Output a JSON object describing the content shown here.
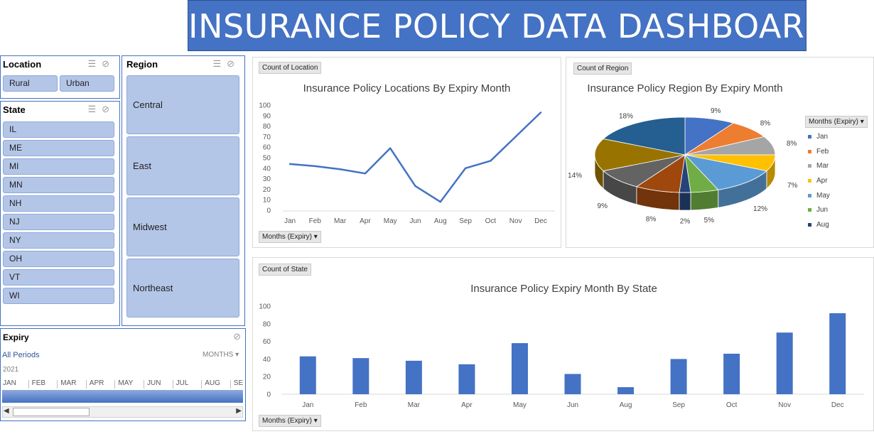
{
  "title": "INSURANCE POLICY DATA DASHBOARD",
  "slicers": {
    "location": {
      "title": "Location",
      "items": [
        "Rural",
        "Urban"
      ]
    },
    "state": {
      "title": "State",
      "items": [
        "IL",
        "ME",
        "MI",
        "MN",
        "NH",
        "NJ",
        "NY",
        "OH",
        "VT",
        "WI"
      ]
    },
    "region": {
      "title": "Region",
      "items": [
        "Central",
        "East",
        "Midwest",
        "Northeast"
      ]
    }
  },
  "timeline": {
    "title": "Expiry",
    "periods_label": "All Periods",
    "level_label": "MONTHS",
    "year": "2021",
    "months": [
      "JAN",
      "FEB",
      "MAR",
      "APR",
      "MAY",
      "JUN",
      "JUL",
      "AUG",
      "SE"
    ]
  },
  "line_panel": {
    "field_button": "Count of Location",
    "axis_field_button": "Months (Expiry)"
  },
  "pie_panel": {
    "field_button": "Count of Region",
    "legend_field_button": "Months (Expiry)"
  },
  "bar_panel": {
    "field_button": "Count of State",
    "axis_field_button": "Months (Expiry)"
  },
  "colors": {
    "accent": "#4472c4",
    "slicer_item": "#b4c6e7"
  },
  "chart_data": [
    {
      "type": "line",
      "title": "Insurance Policy Locations By Expiry Month",
      "categories": [
        "Jan",
        "Feb",
        "Mar",
        "Apr",
        "May",
        "Jun",
        "Aug",
        "Sep",
        "Oct",
        "Nov",
        "Dec"
      ],
      "values": [
        44,
        42,
        39,
        35,
        59,
        23,
        8,
        40,
        47,
        70,
        93
      ],
      "ylim": [
        0,
        100
      ],
      "yticks": [
        0,
        10,
        20,
        30,
        40,
        50,
        60,
        70,
        80,
        90,
        100
      ],
      "grid": false
    },
    {
      "type": "pie",
      "title": "Insurance Policy Region By Expiry Month",
      "legend": [
        "Jan",
        "Feb",
        "Mar",
        "Apr",
        "May",
        "Jun",
        "Aug"
      ],
      "slices": [
        {
          "label": "9%",
          "value": 9,
          "color": "#4472c4"
        },
        {
          "label": "8%",
          "value": 8,
          "color": "#ed7d31"
        },
        {
          "label": "8%",
          "value": 8,
          "color": "#a5a5a5"
        },
        {
          "label": "7%",
          "value": 7,
          "color": "#ffc000"
        },
        {
          "label": "12%",
          "value": 12,
          "color": "#5b9bd5"
        },
        {
          "label": "5%",
          "value": 5,
          "color": "#70ad47"
        },
        {
          "label": "2%",
          "value": 2,
          "color": "#264478"
        },
        {
          "label": "8%",
          "value": 8,
          "color": "#9e480e"
        },
        {
          "label": "9%",
          "value": 9,
          "color": "#636363"
        },
        {
          "label": "14%",
          "value": 14,
          "color": "#997300"
        },
        {
          "label": "18%",
          "value": 18,
          "color": "#255e91"
        }
      ],
      "legend_placement": "right"
    },
    {
      "type": "bar",
      "title": "Insurance Policy Expiry Month By State",
      "categories": [
        "Jan",
        "Feb",
        "Mar",
        "Apr",
        "May",
        "Jun",
        "Aug",
        "Sep",
        "Oct",
        "Nov",
        "Dec"
      ],
      "values": [
        43,
        41,
        38,
        34,
        58,
        23,
        8,
        40,
        46,
        70,
        92
      ],
      "ylim": [
        0,
        100
      ],
      "yticks": [
        0,
        20,
        40,
        60,
        80,
        100
      ],
      "grid": false
    }
  ]
}
